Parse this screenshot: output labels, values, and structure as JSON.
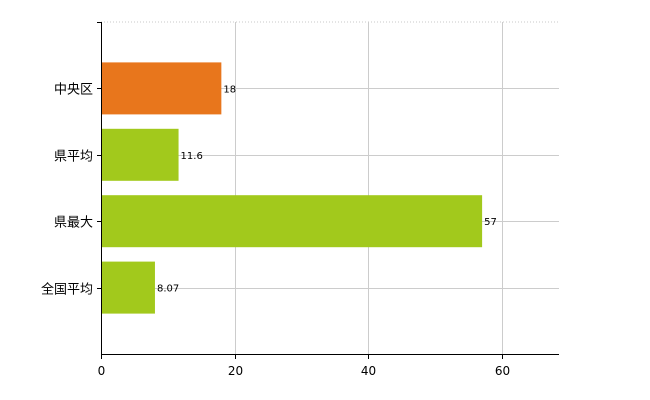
{
  "chart_data": {
    "type": "bar",
    "orientation": "horizontal",
    "categories": [
      "中央区",
      "県平均",
      "県最大",
      "全国平均"
    ],
    "values": [
      18,
      11.6,
      57,
      8.07
    ],
    "value_labels": [
      "18",
      "11.6",
      "57",
      "8.07"
    ],
    "bar_colors": [
      "#E8761C",
      "#A2C91C",
      "#A2C91C",
      "#A2C91C"
    ],
    "xlim": [
      0,
      68.5
    ],
    "xticks": [
      0,
      20,
      40,
      60
    ],
    "xtick_labels": [
      "0",
      "20",
      "40",
      "60"
    ],
    "grid": true,
    "legend": "none"
  }
}
